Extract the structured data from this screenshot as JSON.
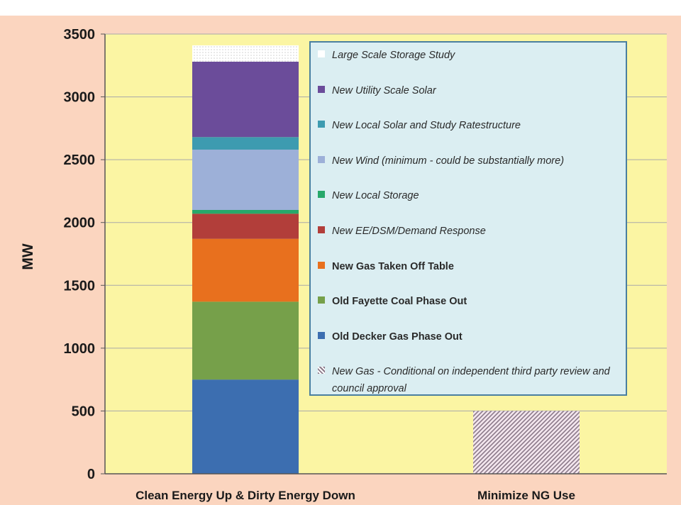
{
  "chart_data": {
    "type": "bar",
    "stacked": true,
    "categories": [
      "Clean Energy Up & Dirty Energy Down",
      "Minimize NG Use"
    ],
    "ylabel": "MW",
    "ylim": [
      0,
      3500
    ],
    "yticks": [
      0,
      500,
      1000,
      1500,
      2000,
      2500,
      3000,
      3500
    ],
    "grid": true,
    "legend_position": "top-right",
    "series": [
      {
        "name": "Old Decker Gas Phase Out",
        "values": [
          750,
          0
        ],
        "color": "#3c6eb0",
        "style": "bold"
      },
      {
        "name": "Old Fayette Coal Phase Out",
        "values": [
          620,
          0
        ],
        "color": "#76a04a",
        "style": "bold"
      },
      {
        "name": "New Gas Taken Off Table",
        "values": [
          500,
          0
        ],
        "color": "#e8701e",
        "style": "bold"
      },
      {
        "name": "New EE/DSM/Demand Response",
        "values": [
          200,
          0
        ],
        "color": "#b23e3a",
        "style": "italic"
      },
      {
        "name": "New Local Storage",
        "values": [
          30,
          0
        ],
        "color": "#27a86a",
        "style": "italic"
      },
      {
        "name": "New Wind (minimum - could be substantially more)",
        "values": [
          480,
          0
        ],
        "color": "#9db0d8",
        "style": "italic"
      },
      {
        "name": "New Local Solar and Study Ratestructure",
        "values": [
          100,
          0
        ],
        "color": "#3d9bb0",
        "style": "italic"
      },
      {
        "name": "New Utility Scale Solar",
        "values": [
          600,
          0
        ],
        "color": "#6b4c9a",
        "style": "italic"
      },
      {
        "name": "Large Scale Storage Study",
        "values": [
          130,
          0
        ],
        "color": "#ffffff",
        "style": "italic"
      },
      {
        "name": "New Gas - Conditional on independent third party review and council approval",
        "values": [
          0,
          500
        ],
        "color": "#8c7a8a",
        "style": "italic-hatched"
      }
    ]
  }
}
